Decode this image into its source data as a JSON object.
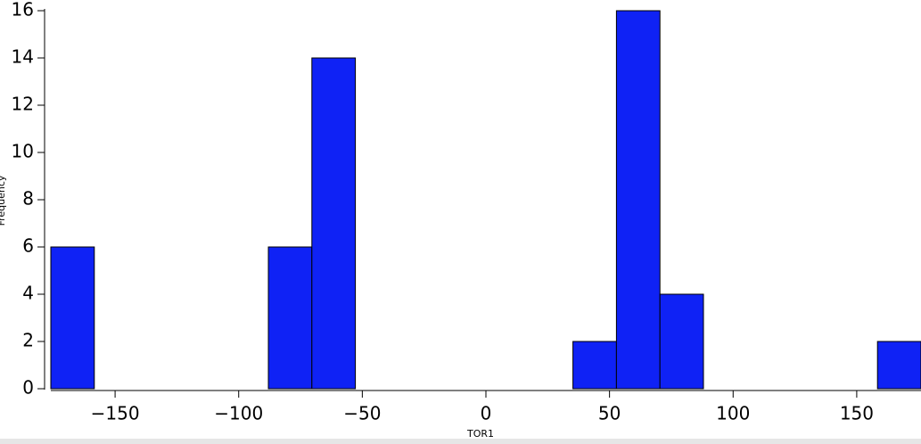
{
  "chart_data": {
    "type": "histogram",
    "x_label": "TOR1",
    "y_label": "Frequency",
    "bins": [
      -176,
      -158.4,
      -140.8,
      -123.2,
      -105.6,
      -88,
      -70.4,
      -52.8,
      -35.2,
      -17.6,
      0,
      17.6,
      35.2,
      52.8,
      70.4,
      88,
      105.6,
      123.2,
      140.8,
      158.4,
      176
    ],
    "counts": [
      6,
      0,
      0,
      0,
      0,
      6,
      14,
      0,
      0,
      0,
      0,
      0,
      2,
      16,
      4,
      0,
      0,
      0,
      0,
      2
    ],
    "color": "#0f22f5",
    "xlim": [
      -176,
      176
    ],
    "ylim": [
      0,
      16
    ],
    "xticks": [
      {
        "value": -150,
        "label": "−150"
      },
      {
        "value": -100,
        "label": "−100"
      },
      {
        "value": -50,
        "label": "−50"
      },
      0,
      50,
      100,
      150
    ],
    "yticks": [
      0,
      2,
      4,
      6,
      8,
      10,
      12,
      14,
      16
    ]
  }
}
